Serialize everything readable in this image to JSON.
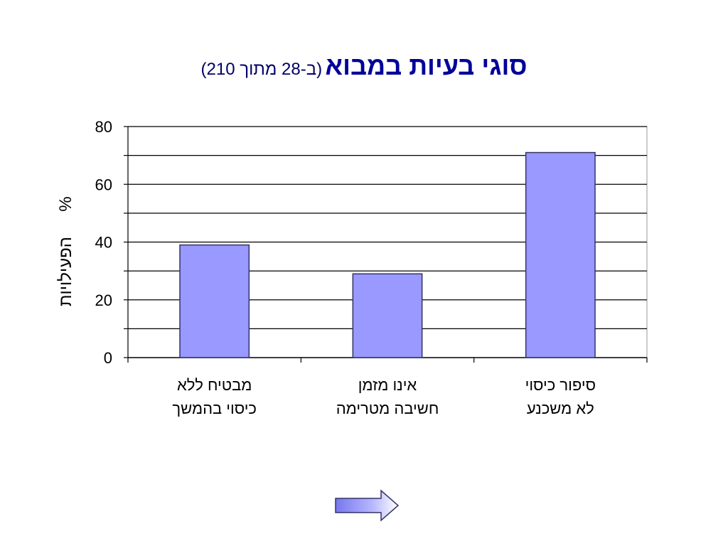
{
  "slide": {
    "title_main": "סוגי בעיות במבוא",
    "title_sub": "(ב-28 מתוך 210)"
  },
  "chart_data": {
    "type": "bar",
    "categories": [
      [
        "סיפור כיסוי",
        "לא משכנע"
      ],
      [
        "אינו מזמן",
        "חשיבה מטרימה"
      ],
      [
        "מבטיח ללא",
        "כיסוי בהמשך"
      ]
    ],
    "values": [
      71,
      29,
      39
    ],
    "ylabel_unit": "%",
    "ylabel": "הפעילויות",
    "ylim": [
      0,
      80
    ],
    "y_ticks": [
      0,
      20,
      40,
      60,
      80
    ],
    "grid": true,
    "bar_color": "#9999ff",
    "bar_border_color": "#333366"
  },
  "navigation": {
    "next_arrow_icon": "right-arrow-icon",
    "arrow_color": "#9999ff"
  }
}
